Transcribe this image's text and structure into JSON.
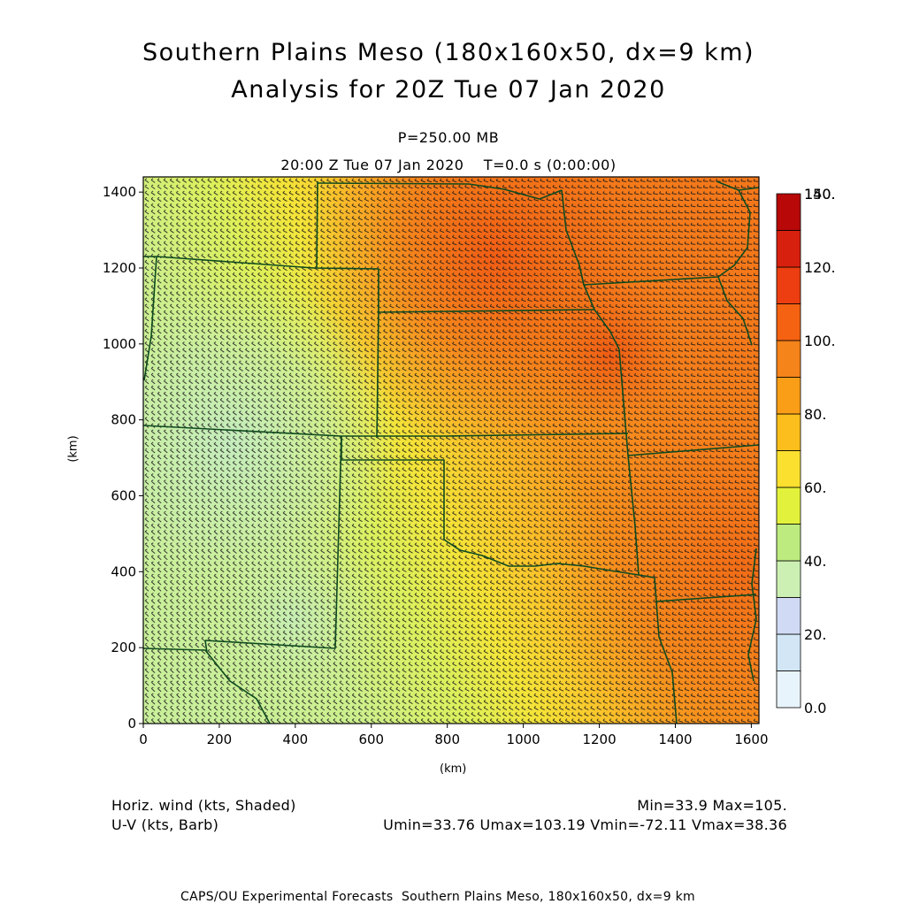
{
  "header": {
    "title_line1": "Southern Plains Meso (180x160x50, dx=9 km)",
    "title_line2": "Analysis for 20Z Tue 07 Jan 2020",
    "level": "P=250.00 MB",
    "time": "20:00 Z Tue 07 Jan 2020    T=0.0 s (0:00:00)"
  },
  "axes": {
    "xlabel": "(km)",
    "ylabel": "(km)",
    "x_ticks": [
      "0",
      "200",
      "400",
      "600",
      "800",
      "1000",
      "1200",
      "1400",
      "1600"
    ],
    "y_ticks": [
      "0",
      "200",
      "400",
      "600",
      "800",
      "1000",
      "1200",
      "1400"
    ],
    "x_range_km": [
      0,
      1620
    ],
    "y_range_km": [
      0,
      1440
    ]
  },
  "colorbar": {
    "labels": [
      "0.0",
      "20.",
      "40.",
      "60.",
      "80.",
      "100.",
      "120.",
      "140.",
      "150."
    ],
    "colors": [
      "#e8f4fb",
      "#d2e6f6",
      "#d0daf4",
      "#ccf0b4",
      "#bdeb80",
      "#e2f23c",
      "#fce030",
      "#fcbe1c",
      "#fa9e18",
      "#f5841a",
      "#f46212",
      "#ec3e10",
      "#d8200e",
      "#b80808"
    ]
  },
  "notes": {
    "left1": "Horiz. wind (kts, Shaded)",
    "left2": "U-V (kts, Barb)",
    "right1": "Min=33.9 Max=105.",
    "right2": "Umin=33.76 Umax=103.19 Vmin=-72.11 Vmax=38.36"
  },
  "footer": "CAPS/OU Experimental Forecasts  Southern Plains Meso, 180x160x50, dx=9 km",
  "map": {
    "field": "Horizontal wind speed (kts) with wind barbs",
    "boundary_color": "#0e4a1e",
    "barb_color": "#1a1a1a"
  }
}
